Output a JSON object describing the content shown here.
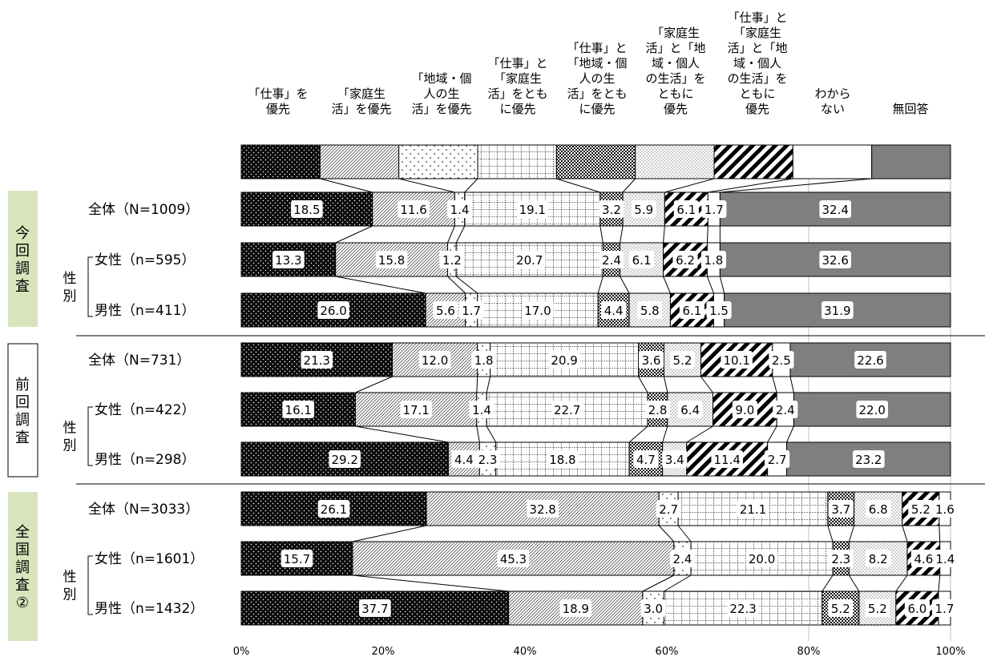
{
  "chart_data": {
    "type": "bar",
    "orientation": "horizontal",
    "stacked": true,
    "percent_stacked": true,
    "categories": [
      "「仕事」を\n優先",
      "「家庭生\n活」を優先",
      "「地域・個\n人の生\n活」を優先",
      "「仕事」と\n「家庭生\n活」をとも\nに優先",
      "「仕事」と\n「地域・個\n人の生\n活」をとも\nに優先",
      "「家庭生\n活」と「地\n域・個人\nの生活」を\nともに\n優先",
      "「仕事」と\n「家庭生\n活」と「地\n域・個人\nの生活」を\nともに\n優先",
      "わから\nない",
      "無回答"
    ],
    "groups": [
      {
        "name": "今\n回\n調\n査",
        "color": "#d8e4bc",
        "border": false
      },
      {
        "name": "前\n回\n調\n査",
        "color": "#ffffff",
        "border": true
      },
      {
        "name": "全\n国\n調\n査\n②",
        "color": "#d8e4bc",
        "border": false
      }
    ],
    "sub_label": "性\n別",
    "rows": [
      {
        "label": "全体（N=1009）",
        "group": 0,
        "values": [
          18.5,
          11.6,
          1.4,
          19.1,
          3.2,
          5.9,
          6.1,
          1.7,
          32.4
        ]
      },
      {
        "label": "女性（n=595）",
        "group": 0,
        "values": [
          13.3,
          15.8,
          1.2,
          20.7,
          2.4,
          6.1,
          6.2,
          1.8,
          32.6
        ]
      },
      {
        "label": "男性（n=411）",
        "group": 0,
        "values": [
          26.0,
          5.6,
          1.7,
          17.0,
          4.4,
          5.8,
          6.1,
          1.5,
          31.9
        ]
      },
      {
        "label": "全体（N=731）",
        "group": 1,
        "values": [
          21.3,
          12.0,
          1.8,
          20.9,
          3.6,
          5.2,
          10.1,
          2.5,
          22.6
        ]
      },
      {
        "label": "女性（n=422）",
        "group": 1,
        "values": [
          16.1,
          17.1,
          1.4,
          22.7,
          2.8,
          6.4,
          9.0,
          2.4,
          22.0
        ]
      },
      {
        "label": "男性（n=298）",
        "group": 1,
        "values": [
          29.2,
          4.4,
          2.3,
          18.8,
          4.7,
          3.4,
          11.4,
          2.7,
          23.2
        ]
      },
      {
        "label": "全体（N=3033）",
        "group": 2,
        "values": [
          26.1,
          32.8,
          2.7,
          21.1,
          3.7,
          6.8,
          5.2,
          1.6,
          null
        ]
      },
      {
        "label": "女性（n=1601）",
        "group": 2,
        "values": [
          15.7,
          45.3,
          2.4,
          20.0,
          2.3,
          8.2,
          4.6,
          1.4,
          null
        ]
      },
      {
        "label": "男性（n=1432）",
        "group": 2,
        "values": [
          37.7,
          18.9,
          3.0,
          22.3,
          5.2,
          5.2,
          6.0,
          1.7,
          null
        ]
      }
    ],
    "x_ticks": [
      "0%",
      "20%",
      "40%",
      "60%",
      "80%",
      "100%"
    ],
    "xlim": [
      0,
      100
    ],
    "patterns": [
      "dark-dots",
      "diag-light",
      "sparse-dots",
      "grid",
      "dense-check",
      "fine-dots",
      "bold-diag",
      "white",
      "gray"
    ],
    "legend_position": "top"
  }
}
